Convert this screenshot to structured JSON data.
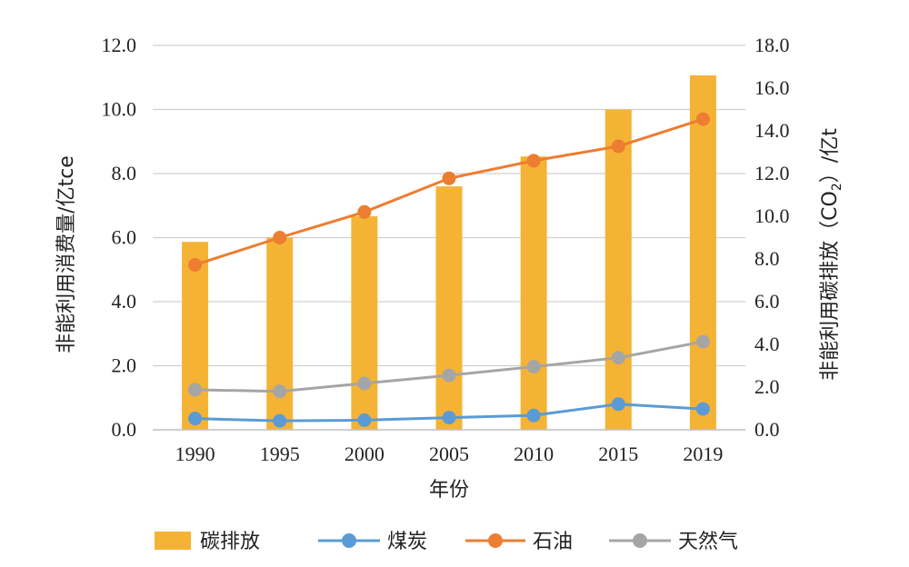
{
  "chart_data": {
    "type": "bar+line",
    "categories": [
      "1990",
      "1995",
      "2000",
      "2005",
      "2010",
      "2015",
      "2019"
    ],
    "xlabel": "年份",
    "ylabel_left": "非能利用消费量/亿tce",
    "ylabel_right_main": "非能利用碳排放（CO",
    "ylabel_right_sub": "2",
    "ylabel_right_tail": "）/亿t",
    "ylim_left": [
      0,
      12
    ],
    "ylim_right": [
      0,
      18
    ],
    "yticks_left": [
      "0.0",
      "2.0",
      "4.0",
      "6.0",
      "8.0",
      "10.0",
      "12.0"
    ],
    "yticks_right": [
      "0.0",
      "2.0",
      "4.0",
      "6.0",
      "8.0",
      "10.0",
      "12.0",
      "14.0",
      "16.0",
      "18.0"
    ],
    "grid": true,
    "legend_position": "bottom",
    "bar_series": {
      "name": "碳排放",
      "axis": "right",
      "color": "#F5B335",
      "values": [
        8.8,
        9.0,
        10.0,
        11.4,
        12.8,
        15.0,
        16.6
      ]
    },
    "line_series": [
      {
        "name": "煤炭",
        "axis": "left",
        "color": "#5B9BD5",
        "values": [
          0.35,
          0.28,
          0.3,
          0.38,
          0.45,
          0.8,
          0.65
        ]
      },
      {
        "name": "石油",
        "axis": "left",
        "color": "#ED7D31",
        "values": [
          5.15,
          6.0,
          6.8,
          7.85,
          8.4,
          8.85,
          9.7
        ]
      },
      {
        "name": "天然气",
        "axis": "left",
        "color": "#A5A5A5",
        "values": [
          1.25,
          1.2,
          1.45,
          1.7,
          1.97,
          2.25,
          2.75
        ]
      }
    ]
  }
}
